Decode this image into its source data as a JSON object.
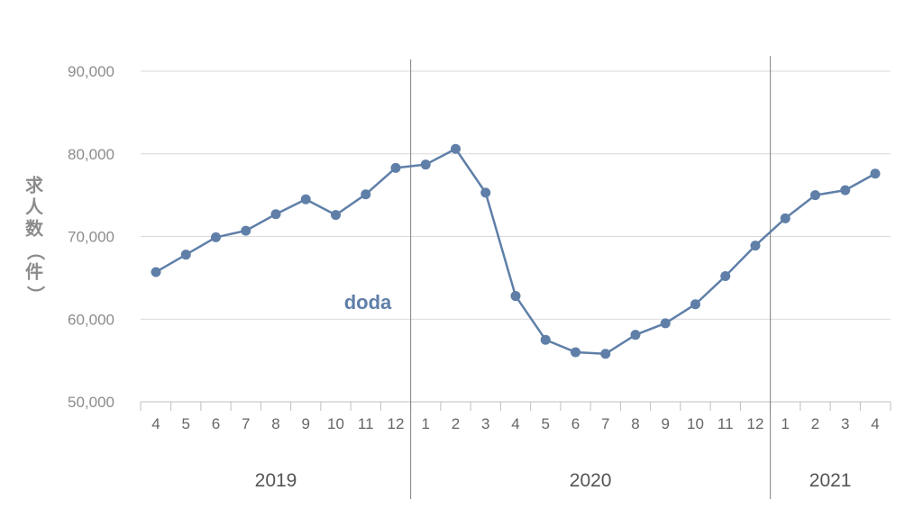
{
  "chart_data": {
    "type": "line",
    "ylabel": "求人数（件）",
    "ylim": [
      50000,
      90000
    ],
    "yticks": [
      50000,
      60000,
      70000,
      80000,
      90000
    ],
    "ytick_labels": [
      "50,000",
      "60,000",
      "70,000",
      "80,000",
      "90,000"
    ],
    "grid": true,
    "categories": [
      "4",
      "5",
      "6",
      "7",
      "8",
      "9",
      "10",
      "11",
      "12",
      "1",
      "2",
      "3",
      "4",
      "5",
      "6",
      "7",
      "8",
      "9",
      "10",
      "11",
      "12",
      "1",
      "2",
      "3",
      "4"
    ],
    "years": [
      {
        "label": "2019",
        "start": 0,
        "end": 8
      },
      {
        "label": "2020",
        "start": 9,
        "end": 20
      },
      {
        "label": "2021",
        "start": 21,
        "end": 24
      }
    ],
    "series": [
      {
        "name": "doda",
        "color": "#5f7fa8",
        "values": [
          65700,
          67800,
          69900,
          70700,
          72700,
          74500,
          72600,
          75100,
          78300,
          78700,
          80600,
          75300,
          62800,
          57500,
          56000,
          55800,
          58100,
          59500,
          61800,
          65200,
          68900,
          72200,
          75000,
          75600,
          77600
        ]
      }
    ]
  }
}
